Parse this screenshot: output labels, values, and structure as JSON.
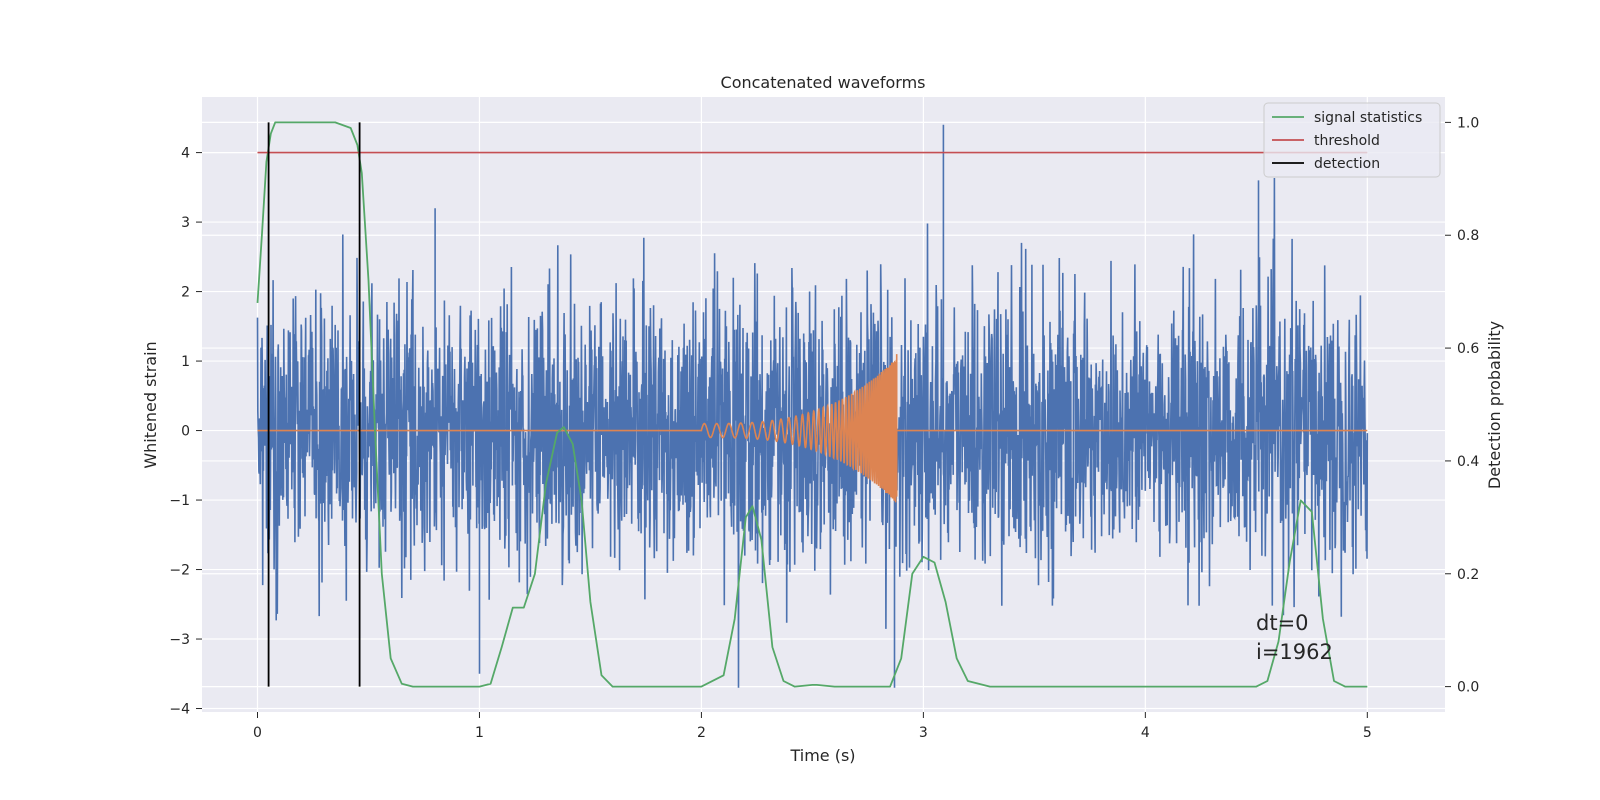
{
  "chart_data": {
    "type": "line",
    "title": "Concatenated waveforms",
    "xlabel": "Time (s)",
    "ylabel": "Whitened strain",
    "y2label": "Detection probability",
    "xlim": [
      -0.25,
      5.35
    ],
    "ylim": [
      -4.05,
      4.8
    ],
    "y2lim": [
      -0.045,
      1.045
    ],
    "x_ticks": [
      0,
      1,
      2,
      3,
      4,
      5
    ],
    "y_ticks": [
      -4,
      -3,
      -2,
      -1,
      0,
      1,
      2,
      3,
      4
    ],
    "y2_ticks": [
      0.0,
      0.2,
      0.4,
      0.6,
      0.8,
      1.0
    ],
    "y2_tick_labels": [
      "0.0",
      "0.2",
      "0.4",
      "0.6",
      "0.8",
      "1.0"
    ],
    "grid": true,
    "legend_position": "top-right",
    "colors": {
      "noise": "#4c72b0",
      "waveform": "#dd8452",
      "signal_statistics": "#55a868",
      "threshold": "#c44e52",
      "detection": "#000000",
      "plot_bg": "#eaeaf2",
      "grid": "#ffffff"
    },
    "noise_series": {
      "color": "#4c72b0",
      "x_range": [
        0,
        5
      ],
      "approx_min": -3.7,
      "approx_max": 4.4
    },
    "waveform_series": {
      "color": "#dd8452",
      "x_range": [
        2.0,
        2.88
      ],
      "peak_max": 1.1,
      "peak_min": -0.95
    },
    "series": [
      {
        "name": "signal statistics",
        "axis": "right",
        "x": [
          0.0,
          0.02,
          0.04,
          0.06,
          0.08,
          0.1,
          0.2,
          0.35,
          0.42,
          0.45,
          0.47,
          0.5,
          0.53,
          0.56,
          0.6,
          0.65,
          0.7,
          1.0,
          1.05,
          1.1,
          1.15,
          1.2,
          1.25,
          1.3,
          1.35,
          1.38,
          1.42,
          1.46,
          1.5,
          1.55,
          1.6,
          2.0,
          2.1,
          2.15,
          2.2,
          2.23,
          2.27,
          2.32,
          2.37,
          2.42,
          2.5,
          2.52,
          2.6,
          2.85,
          2.9,
          2.95,
          3.0,
          3.05,
          3.1,
          3.15,
          3.2,
          3.3,
          3.4,
          4.5,
          4.55,
          4.6,
          4.65,
          4.7,
          4.75,
          4.8,
          4.85,
          4.9,
          5.0
        ],
        "y": [
          0.68,
          0.8,
          0.93,
          0.98,
          1.0,
          1.0,
          1.0,
          1.0,
          0.99,
          0.96,
          0.91,
          0.72,
          0.45,
          0.2,
          0.05,
          0.005,
          0.0,
          0.0,
          0.005,
          0.07,
          0.14,
          0.14,
          0.2,
          0.36,
          0.45,
          0.46,
          0.43,
          0.33,
          0.15,
          0.02,
          0.0,
          0.0,
          0.02,
          0.12,
          0.3,
          0.32,
          0.26,
          0.07,
          0.01,
          0.0,
          0.003,
          0.003,
          0.0,
          0.0,
          0.05,
          0.2,
          0.23,
          0.22,
          0.15,
          0.05,
          0.01,
          0.0,
          0.0,
          0.0,
          0.01,
          0.08,
          0.22,
          0.33,
          0.31,
          0.12,
          0.01,
          0.0,
          0.0
        ]
      },
      {
        "name": "threshold",
        "axis": "left",
        "x": [
          0,
          5
        ],
        "y": [
          4.0,
          4.0
        ]
      },
      {
        "name": "detection",
        "axis": "right",
        "vlines_x": [
          0.05,
          0.46
        ],
        "y_from": 0.0,
        "y_to": 1.0
      }
    ],
    "legend": [
      {
        "label": "signal statistics",
        "color": "#55a868"
      },
      {
        "label": "threshold",
        "color": "#c44e52"
      },
      {
        "label": "detection",
        "color": "#000000"
      }
    ],
    "annotations": [
      "dt=0",
      "i=1962"
    ]
  }
}
